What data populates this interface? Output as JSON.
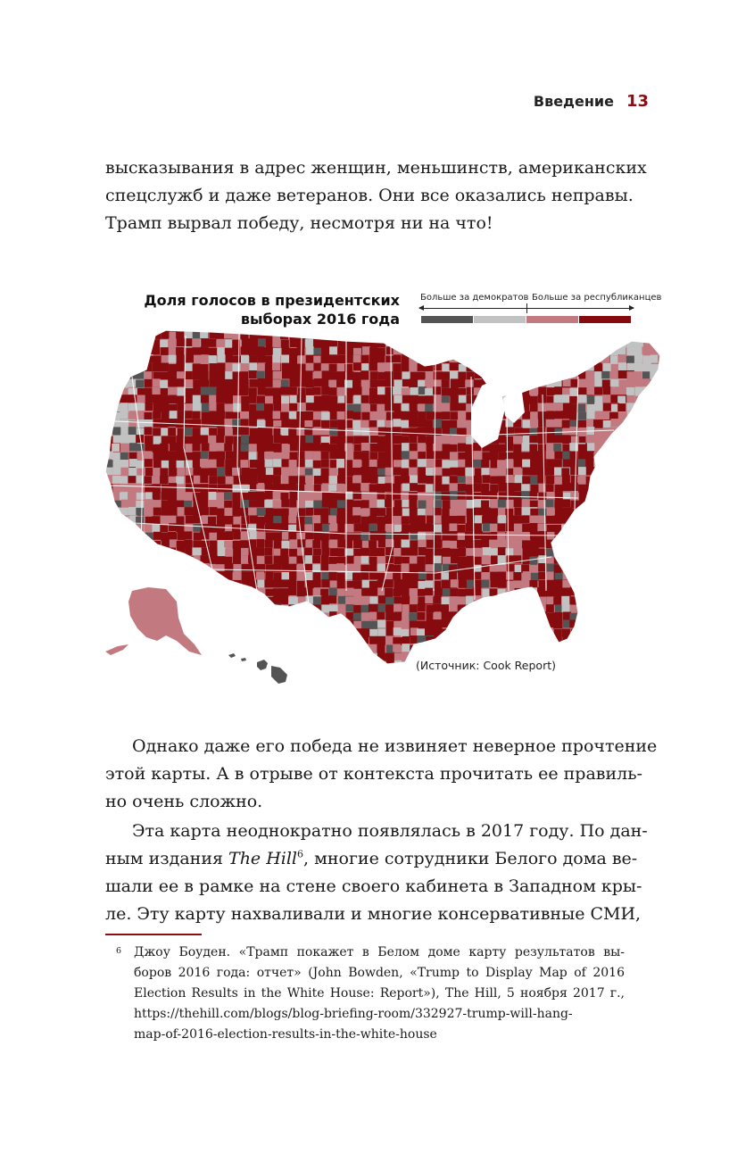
{
  "header": {
    "section": "Введение",
    "page_number": "13"
  },
  "paragraph1": {
    "lines": [
      "высказывания в адрес женщин, меньшинств, американских",
      "спецслужб и даже ветеранов. Они все оказались неправы.",
      "Трамп вырвал победу, несмотря ни на что!"
    ]
  },
  "figure": {
    "title_line1": "Доля голосов в президентских",
    "title_line2": "выборах 2016 года",
    "legend": {
      "left_label": "Больше за демократов",
      "right_label": "Больше за республиканцев",
      "colors": [
        "#545454",
        "#c2c2c2",
        "#c27a80",
        "#860b0f"
      ]
    },
    "map_colors": {
      "strong_dem": "#545454",
      "lean_dem": "#c2c2c2",
      "lean_rep": "#c27a80",
      "strong_rep": "#860b0f"
    },
    "source": "(Источник: Cook Report)"
  },
  "paragraph2": {
    "lines": [
      "Однако даже его победа не извиняет неверное прочтение",
      "этой карты. А в отрыве от контекста прочитать ее правиль-",
      "но очень сложно."
    ]
  },
  "paragraph3": {
    "line1": "Эта карта неоднократно появлялась в 2017 году. По дан-",
    "line2_pre": "ным издания ",
    "line2_italic": "The Hill",
    "line2_sup": "6",
    "line2_post": ", многие сотрудники Белого дома ве-",
    "line3": "шали ее в рамке на стене своего кабинета в Западном кры-",
    "line4": "ле. Эту карту нахваливали и многие консервативные СМИ,"
  },
  "footnote": {
    "marker": "6",
    "lines": [
      "Джоу Боуден. «Трамп покажет в Белом доме карту результатов вы-",
      "боров 2016 года: отчет» (John Bowden, «Trump to Display Map of 2016",
      "Election Results in the White House: Report»), The Hill, 5 ноября 2017 г.,",
      "https://thehill.com/blogs/blog-briefing-room/332927-trump-will-hang-",
      "map-of-2016-election-results-in-the-white-house"
    ]
  }
}
